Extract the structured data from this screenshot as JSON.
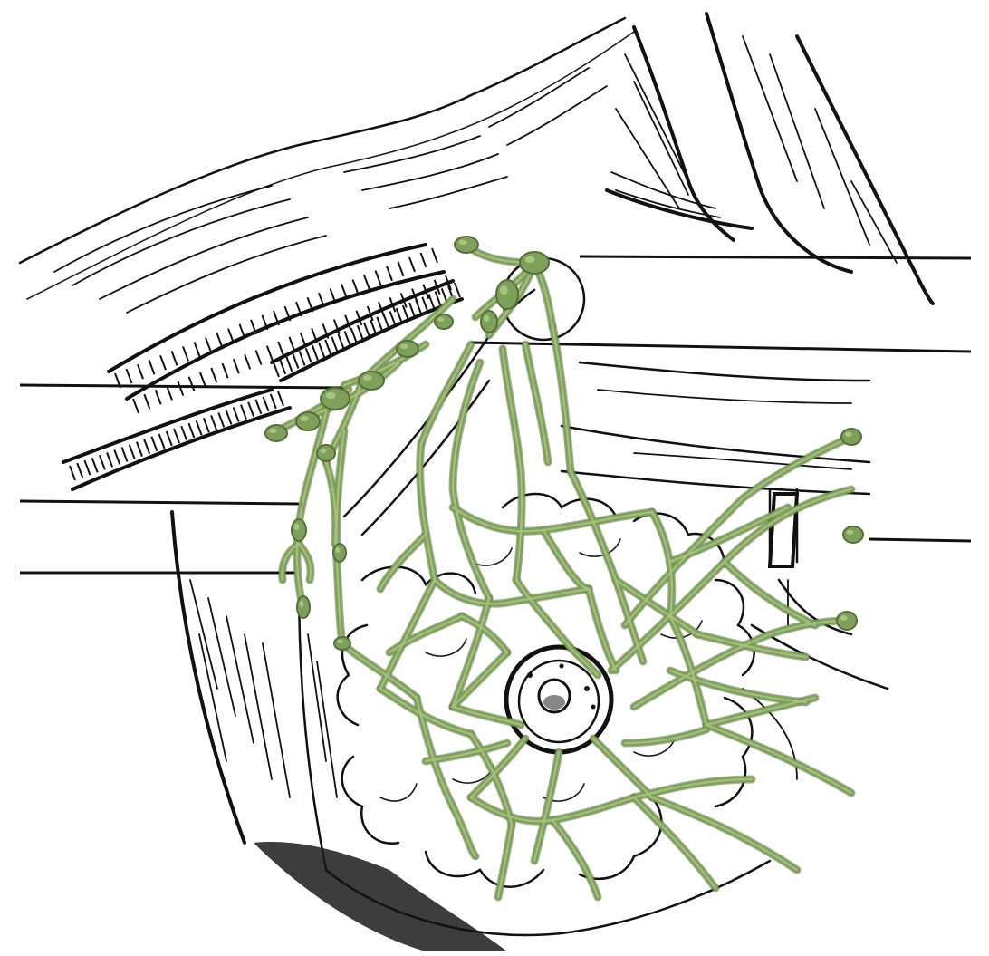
{
  "colors": {
    "lymph_vessel": "#7fa05a",
    "lymph_vessel_highlight": "#a9c47f",
    "lymph_vessel_shadow": "#556f3a",
    "ink": "#111111",
    "paper": "#ffffff"
  },
  "illustration": {
    "icons": [
      "lymphatic-network",
      "nipple-areola",
      "retractor-bands",
      "axillary-nodes"
    ]
  }
}
